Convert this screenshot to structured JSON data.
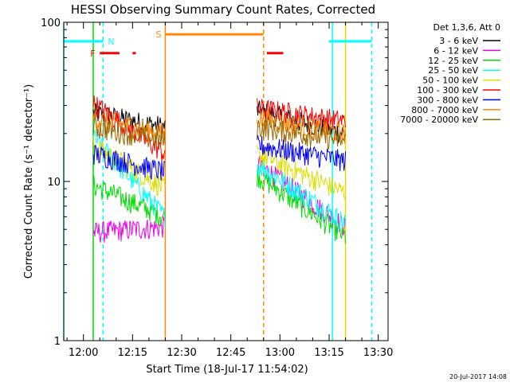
{
  "chart_data": {
    "type": "line",
    "title": "HESSI Observing Summary Count Rates, Corrected",
    "xlabel": "Start Time (18-Jul-17 11:54:02)",
    "ylabel": "Corrected Count Rate (s⁻¹ detector⁻¹)",
    "yscale": "log",
    "ylim": [
      1,
      100
    ],
    "xlim": [
      "11:54",
      "13:33"
    ],
    "x_ticks": [
      "12:00",
      "12:15",
      "12:30",
      "12:45",
      "13:00",
      "13:15",
      "13:30"
    ],
    "y_ticks": [
      "1",
      "10",
      "100"
    ],
    "legend_position": "top-right outside",
    "legend_header": "Det 1,3,6, Att 0",
    "timestamp": "20-Jul-2017 14:08",
    "data_segments": [
      {
        "start": "12:03",
        "end": "12:25"
      },
      {
        "start": "12:53",
        "end": "13:20"
      }
    ],
    "series": [
      {
        "name": "3 - 6 keV",
        "color": "#000000",
        "seg1": [
          27,
          22
        ],
        "seg2": [
          28,
          20
        ]
      },
      {
        "name": "6 - 12 keV",
        "color": "#ee00ee",
        "seg1": [
          4.8,
          5.2
        ],
        "seg2": [
          13,
          5.2
        ]
      },
      {
        "name": "12 - 25 keV",
        "color": "#00dd00",
        "seg1": [
          9.5,
          6.0
        ],
        "seg2": [
          11,
          4.5
        ]
      },
      {
        "name": "25 - 50 keV",
        "color": "#00ffff",
        "seg1": [
          19,
          6.0
        ],
        "seg2": [
          13,
          5.5
        ]
      },
      {
        "name": "50 - 100 keV",
        "color": "#dddd00",
        "seg1": [
          17,
          9.0
        ],
        "seg2": [
          15,
          8.5
        ]
      },
      {
        "name": "100 - 300 keV",
        "color": "#ff0000",
        "seg1": [
          31,
          15
        ],
        "seg2": [
          29,
          24
        ]
      },
      {
        "name": "300 - 800 keV",
        "color": "#0000ff",
        "seg1": [
          15,
          11.5
        ],
        "seg2": [
          17,
          13.5
        ]
      },
      {
        "name": "800 - 7000 keV",
        "color": "#ff8800",
        "seg1": [
          25,
          20
        ],
        "seg2": [
          25,
          20
        ]
      },
      {
        "name": "7000 - 20000 keV",
        "color": "#996600",
        "seg1": [
          22,
          18
        ],
        "seg2": [
          22,
          18
        ]
      }
    ],
    "flags": [
      {
        "label": "N",
        "color": "#00ffff",
        "level": 76,
        "segments": [
          [
            "11:54",
            "12:06"
          ],
          [
            "13:15",
            "13:28"
          ]
        ]
      },
      {
        "label": "S",
        "color": "#ff8800",
        "level": 84,
        "segments": [
          [
            "12:25",
            "12:55"
          ]
        ]
      },
      {
        "label": "F",
        "color": "#ff0000",
        "level": 64,
        "segments": [
          [
            "12:05",
            "12:11"
          ],
          [
            "12:15",
            "12:16"
          ],
          [
            "12:56",
            "13:01"
          ]
        ]
      }
    ],
    "vlines": [
      {
        "time": "11:54",
        "color": "#00ffff",
        "style": "solid"
      },
      {
        "time": "12:03",
        "color": "#00dd00",
        "style": "solid"
      },
      {
        "time": "12:06",
        "color": "#00ffff",
        "style": "dashed"
      },
      {
        "time": "12:25",
        "color": "#ff8800",
        "style": "solid"
      },
      {
        "time": "12:55",
        "color": "#ff8800",
        "style": "dashed"
      },
      {
        "time": "13:16",
        "color": "#00ffff",
        "style": "solid"
      },
      {
        "time": "13:20",
        "color": "#dddd00",
        "style": "solid"
      },
      {
        "time": "13:28",
        "color": "#00ffff",
        "style": "dashed"
      }
    ]
  }
}
